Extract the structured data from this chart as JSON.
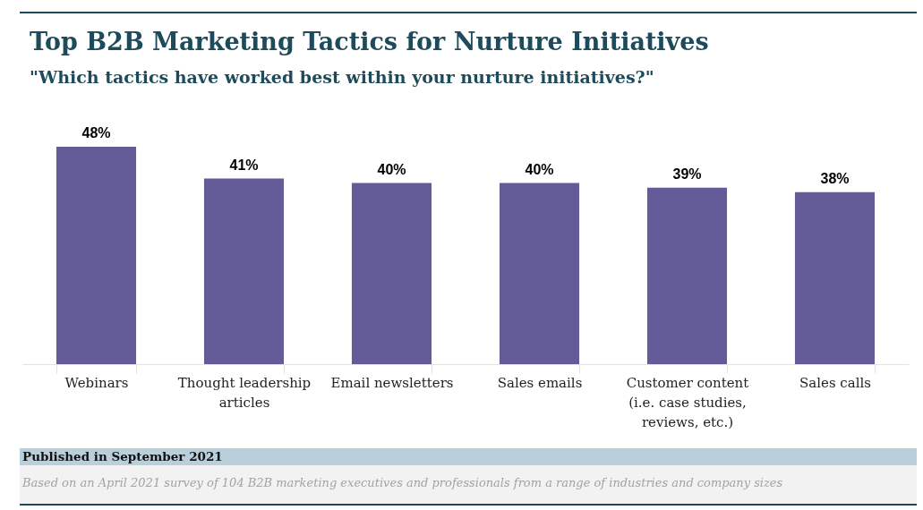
{
  "chart_data": {
    "type": "bar",
    "title": "Top B2B Marketing Tactics for Nurture Initiatives",
    "subtitle": "\"Which tactics have worked best within your nurture initiatives?\"",
    "categories": [
      "Webinars",
      "Thought leadership articles",
      "Email newsletters",
      "Sales emails",
      "Customer content (i.e. case studies, reviews, etc.)",
      "Sales calls"
    ],
    "values": [
      48,
      41,
      40,
      40,
      39,
      38
    ],
    "value_labels": [
      "48%",
      "41%",
      "40%",
      "40%",
      "39%",
      "38%"
    ],
    "color": "#635c99",
    "tick_labels": "x",
    "annotations": [
      "Published in September 2021",
      "Based on an April 2021 survey of 104 B2B marketing executives and professionals from a range of industries and company sizes"
    ]
  }
}
